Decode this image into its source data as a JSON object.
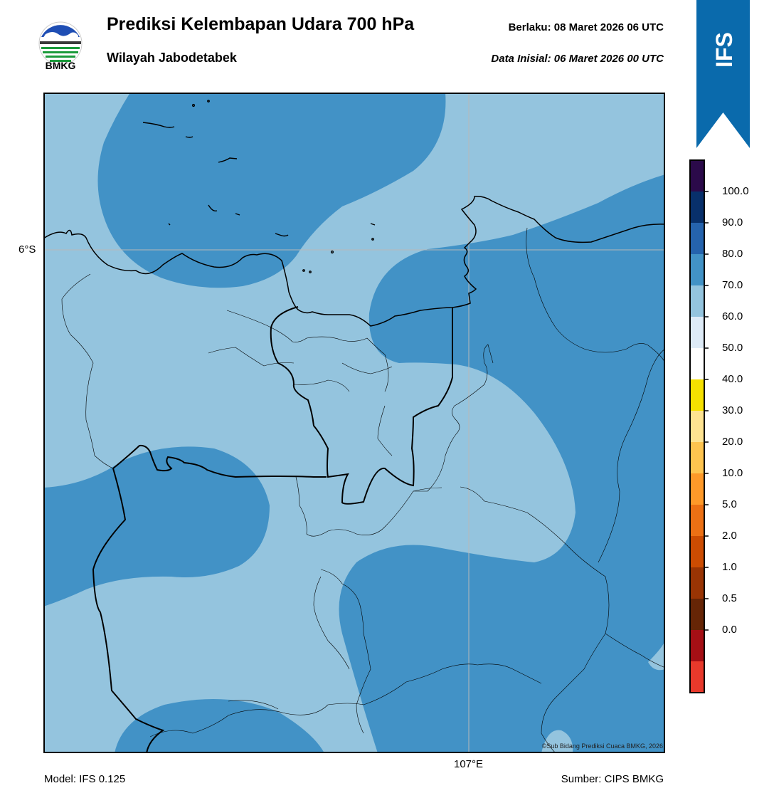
{
  "header": {
    "title": "Prediksi Kelembapan Udara 700 hPa",
    "region": "Wilayah Jabodetabek",
    "valid_label": "Berlaku:  08 Maret 2026 06 UTC",
    "init_label": "Data Inisial:  06 Maret 2026 00 UTC"
  },
  "logo": {
    "text": "BMKG",
    "icon": "bmkg-logo"
  },
  "badge": {
    "text": "IFS",
    "color": "#0a6aac"
  },
  "map": {
    "lat_label": "6°S",
    "lon_label": "107°E",
    "credit": "©Sub Bidang Prediksi Cuaca BMKG, 2026",
    "colors": {
      "light_blue_60_70": "#94c4de",
      "mid_blue_70_80": "#4292c6"
    }
  },
  "colorbar": {
    "ticks": [
      "100.0",
      "90.0",
      "80.0",
      "70.0",
      "60.0",
      "50.0",
      "40.0",
      "30.0",
      "20.0",
      "10.0",
      "5.0",
      "2.0",
      "1.0",
      "0.5",
      "0.0"
    ],
    "colors_top_to_bottom": [
      "#2b0a4a",
      "#08306b",
      "#2563ad",
      "#4292c6",
      "#94c4de",
      "#deebf7",
      "#ffffff",
      "#f5e000",
      "#fee391",
      "#fec44f",
      "#fe9929",
      "#ec7014",
      "#cc4c02",
      "#993404",
      "#662506",
      "#a50f15",
      "#e8392b"
    ]
  },
  "footer": {
    "model": "Model: IFS 0.125",
    "source": "Sumber: CIPS BMKG"
  }
}
